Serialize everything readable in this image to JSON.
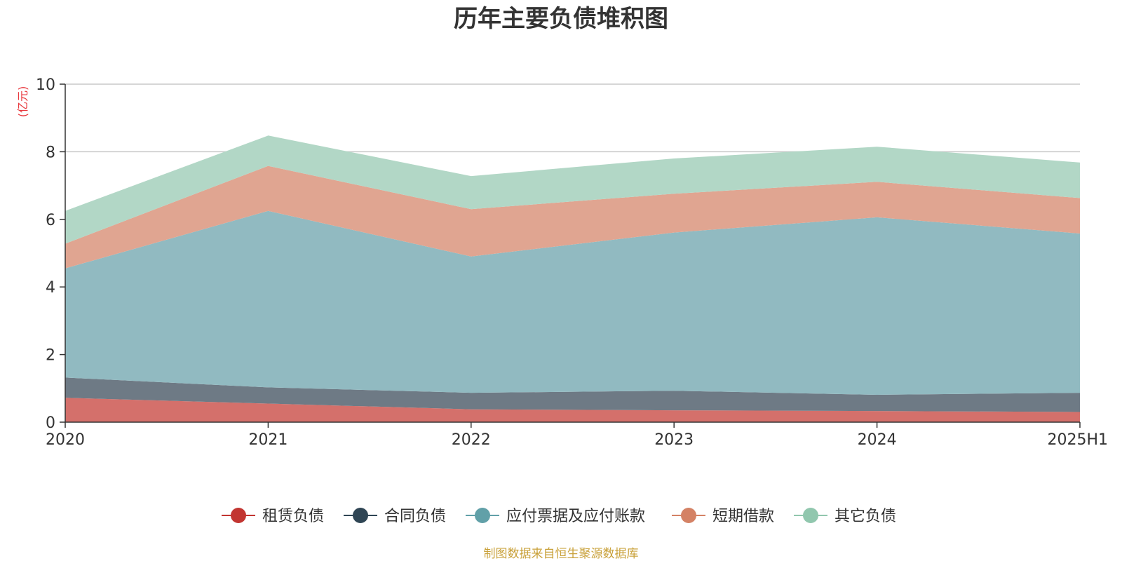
{
  "colors": {
    "text": "#333333",
    "axis": "#333333",
    "grid": "#c8c8c8",
    "unit": "#e8383d",
    "source": "#c9a13a"
  },
  "chart_data": {
    "type": "area",
    "stacked": true,
    "title": "历年主要负债堆积图",
    "ylabel": "(亿元)",
    "ylim": [
      0,
      10
    ],
    "yticks": [
      0,
      2,
      4,
      6,
      8,
      10
    ],
    "categories": [
      "2020",
      "2021",
      "2022",
      "2023",
      "2024",
      "2025H1"
    ],
    "grid": true,
    "legend_position": "bottom",
    "series": [
      {
        "name": "租赁负债",
        "color": "#c23531",
        "fill": "#d4706b",
        "values": [
          0.72,
          0.55,
          0.38,
          0.35,
          0.33,
          0.3
        ]
      },
      {
        "name": "合同负债",
        "color": "#2f4554",
        "fill": "#6e7a85",
        "values": [
          0.6,
          0.48,
          0.49,
          0.58,
          0.48,
          0.57
        ]
      },
      {
        "name": "应付票据及应付账款",
        "color": "#61a0a8",
        "fill": "#91bac1",
        "values": [
          3.23,
          5.22,
          4.03,
          4.68,
          5.25,
          4.71
        ]
      },
      {
        "name": "短期借款",
        "color": "#d48265",
        "fill": "#e0a591",
        "values": [
          0.73,
          1.33,
          1.4,
          1.15,
          1.05,
          1.05
        ]
      },
      {
        "name": "其它负债",
        "color": "#91c7ae",
        "fill": "#b2d7c6",
        "values": [
          0.97,
          0.9,
          0.98,
          1.04,
          1.04,
          1.05
        ]
      }
    ]
  },
  "footer": {
    "source": "制图数据来自恒生聚源数据库"
  }
}
